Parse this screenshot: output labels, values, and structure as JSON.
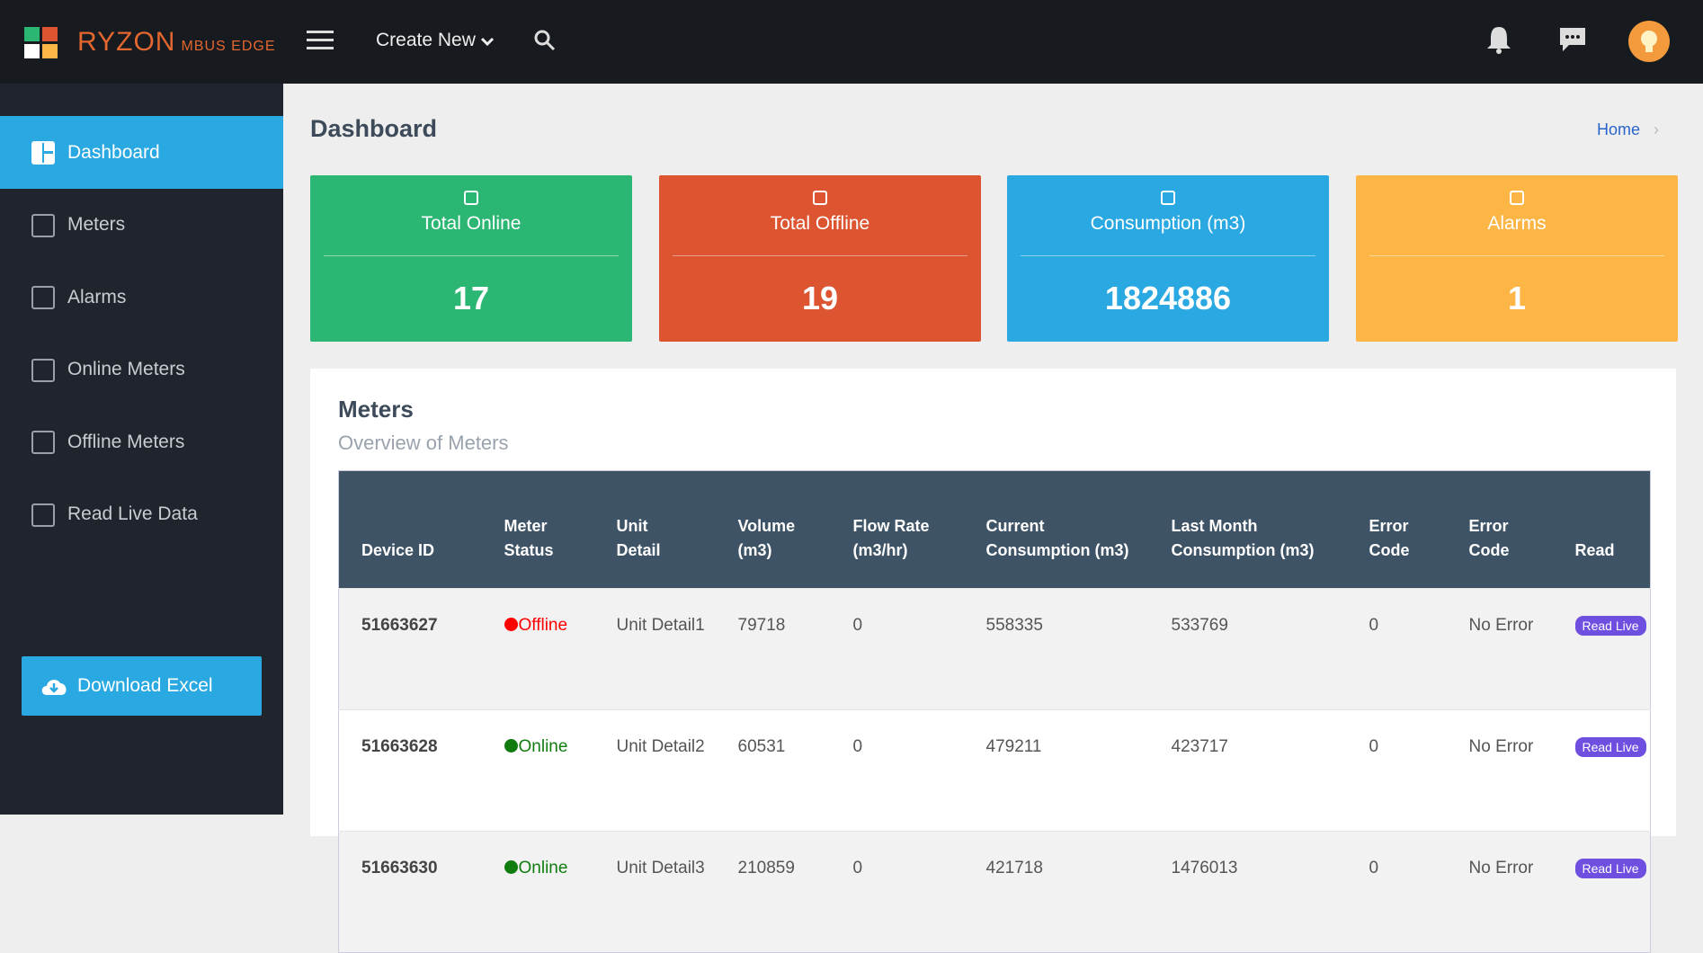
{
  "header": {
    "brand": "RYZON",
    "brand_sub": "MBUS EDGE",
    "create_new": "Create New"
  },
  "sidebar": {
    "items": [
      {
        "label": "Dashboard",
        "active": true
      },
      {
        "label": "Meters"
      },
      {
        "label": "Alarms"
      },
      {
        "label": "Online Meters"
      },
      {
        "label": "Offline Meters"
      },
      {
        "label": "Read Live Data"
      }
    ],
    "download": "Download Excel"
  },
  "page": {
    "title": "Dashboard",
    "breadcrumb": "Home"
  },
  "cards": [
    {
      "label": "Total Online",
      "value": 17,
      "color": "#2bb673"
    },
    {
      "label": "Total Offline",
      "value": 19,
      "color": "#dc5430"
    },
    {
      "label": "Consumption (m3)",
      "value": 1824886,
      "color": "#2aa8e2"
    },
    {
      "label": "Alarms",
      "value": 1,
      "color": "#fdb646"
    }
  ],
  "panel": {
    "title": "Meters",
    "subtitle": "Overview of Meters"
  },
  "table": {
    "columns": [
      [
        "Device ID"
      ],
      [
        "Meter",
        "Status"
      ],
      [
        "Unit",
        "Detail"
      ],
      [
        "Volume",
        "(m3)"
      ],
      [
        "Flow Rate",
        "(m3/hr)"
      ],
      [
        "Current",
        "Consumption (m3)"
      ],
      [
        "Last Month",
        "Consumption (m3)"
      ],
      [
        "Error",
        "Code"
      ],
      [
        "Error",
        "Code"
      ],
      [
        "Read"
      ]
    ],
    "rows": [
      {
        "device": "51663627",
        "status": "Offline",
        "status_color": "#ff0000",
        "unit": "Unit Detail1",
        "volume": "79718",
        "flow": "0",
        "current": "558335",
        "last": "533769",
        "code": "0",
        "error": "No Error",
        "read": "Read Live"
      },
      {
        "device": "51663628",
        "status": "Online",
        "status_color": "#107c10",
        "unit": "Unit Detail2",
        "volume": "60531",
        "flow": "0",
        "current": "479211",
        "last": "423717",
        "code": "0",
        "error": "No Error",
        "read": "Read Live"
      },
      {
        "device": "51663630",
        "status": "Online",
        "status_color": "#107c10",
        "unit": "Unit Detail3",
        "volume": "210859",
        "flow": "0",
        "current": "421718",
        "last": "1476013",
        "code": "0",
        "error": "No Error",
        "read": "Read Live"
      }
    ]
  }
}
